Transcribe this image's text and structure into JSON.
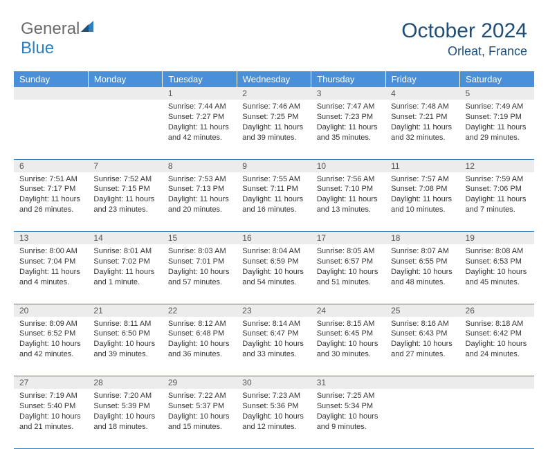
{
  "brand": {
    "part1": "General",
    "part2": "Blue",
    "accent_color": "#2f7fbf",
    "gray_color": "#6b6b6b"
  },
  "title": {
    "month": "October 2024",
    "location": "Orleat, France",
    "color": "#1f4e79",
    "month_fontsize": 30,
    "location_fontsize": 18
  },
  "theme": {
    "header_bg": "#4a90d9",
    "header_text": "#ffffff",
    "daynum_bg": "#ececec",
    "daynum_text": "#555555",
    "cell_text": "#333333",
    "row_border": "#2f7fbf",
    "body_fontsize": 11,
    "daynum_fontsize": 12,
    "header_fontsize": 13
  },
  "columns": [
    "Sunday",
    "Monday",
    "Tuesday",
    "Wednesday",
    "Thursday",
    "Friday",
    "Saturday"
  ],
  "weeks": [
    {
      "nums": [
        "",
        "",
        "1",
        "2",
        "3",
        "4",
        "5"
      ],
      "cells": [
        null,
        null,
        {
          "sunrise": "Sunrise: 7:44 AM",
          "sunset": "Sunset: 7:27 PM",
          "daylight": "Daylight: 11 hours and 42 minutes."
        },
        {
          "sunrise": "Sunrise: 7:46 AM",
          "sunset": "Sunset: 7:25 PM",
          "daylight": "Daylight: 11 hours and 39 minutes."
        },
        {
          "sunrise": "Sunrise: 7:47 AM",
          "sunset": "Sunset: 7:23 PM",
          "daylight": "Daylight: 11 hours and 35 minutes."
        },
        {
          "sunrise": "Sunrise: 7:48 AM",
          "sunset": "Sunset: 7:21 PM",
          "daylight": "Daylight: 11 hours and 32 minutes."
        },
        {
          "sunrise": "Sunrise: 7:49 AM",
          "sunset": "Sunset: 7:19 PM",
          "daylight": "Daylight: 11 hours and 29 minutes."
        }
      ]
    },
    {
      "nums": [
        "6",
        "7",
        "8",
        "9",
        "10",
        "11",
        "12"
      ],
      "cells": [
        {
          "sunrise": "Sunrise: 7:51 AM",
          "sunset": "Sunset: 7:17 PM",
          "daylight": "Daylight: 11 hours and 26 minutes."
        },
        {
          "sunrise": "Sunrise: 7:52 AM",
          "sunset": "Sunset: 7:15 PM",
          "daylight": "Daylight: 11 hours and 23 minutes."
        },
        {
          "sunrise": "Sunrise: 7:53 AM",
          "sunset": "Sunset: 7:13 PM",
          "daylight": "Daylight: 11 hours and 20 minutes."
        },
        {
          "sunrise": "Sunrise: 7:55 AM",
          "sunset": "Sunset: 7:11 PM",
          "daylight": "Daylight: 11 hours and 16 minutes."
        },
        {
          "sunrise": "Sunrise: 7:56 AM",
          "sunset": "Sunset: 7:10 PM",
          "daylight": "Daylight: 11 hours and 13 minutes."
        },
        {
          "sunrise": "Sunrise: 7:57 AM",
          "sunset": "Sunset: 7:08 PM",
          "daylight": "Daylight: 11 hours and 10 minutes."
        },
        {
          "sunrise": "Sunrise: 7:59 AM",
          "sunset": "Sunset: 7:06 PM",
          "daylight": "Daylight: 11 hours and 7 minutes."
        }
      ]
    },
    {
      "nums": [
        "13",
        "14",
        "15",
        "16",
        "17",
        "18",
        "19"
      ],
      "cells": [
        {
          "sunrise": "Sunrise: 8:00 AM",
          "sunset": "Sunset: 7:04 PM",
          "daylight": "Daylight: 11 hours and 4 minutes."
        },
        {
          "sunrise": "Sunrise: 8:01 AM",
          "sunset": "Sunset: 7:02 PM",
          "daylight": "Daylight: 11 hours and 1 minute."
        },
        {
          "sunrise": "Sunrise: 8:03 AM",
          "sunset": "Sunset: 7:01 PM",
          "daylight": "Daylight: 10 hours and 57 minutes."
        },
        {
          "sunrise": "Sunrise: 8:04 AM",
          "sunset": "Sunset: 6:59 PM",
          "daylight": "Daylight: 10 hours and 54 minutes."
        },
        {
          "sunrise": "Sunrise: 8:05 AM",
          "sunset": "Sunset: 6:57 PM",
          "daylight": "Daylight: 10 hours and 51 minutes."
        },
        {
          "sunrise": "Sunrise: 8:07 AM",
          "sunset": "Sunset: 6:55 PM",
          "daylight": "Daylight: 10 hours and 48 minutes."
        },
        {
          "sunrise": "Sunrise: 8:08 AM",
          "sunset": "Sunset: 6:53 PM",
          "daylight": "Daylight: 10 hours and 45 minutes."
        }
      ]
    },
    {
      "nums": [
        "20",
        "21",
        "22",
        "23",
        "24",
        "25",
        "26"
      ],
      "cells": [
        {
          "sunrise": "Sunrise: 8:09 AM",
          "sunset": "Sunset: 6:52 PM",
          "daylight": "Daylight: 10 hours and 42 minutes."
        },
        {
          "sunrise": "Sunrise: 8:11 AM",
          "sunset": "Sunset: 6:50 PM",
          "daylight": "Daylight: 10 hours and 39 minutes."
        },
        {
          "sunrise": "Sunrise: 8:12 AM",
          "sunset": "Sunset: 6:48 PM",
          "daylight": "Daylight: 10 hours and 36 minutes."
        },
        {
          "sunrise": "Sunrise: 8:14 AM",
          "sunset": "Sunset: 6:47 PM",
          "daylight": "Daylight: 10 hours and 33 minutes."
        },
        {
          "sunrise": "Sunrise: 8:15 AM",
          "sunset": "Sunset: 6:45 PM",
          "daylight": "Daylight: 10 hours and 30 minutes."
        },
        {
          "sunrise": "Sunrise: 8:16 AM",
          "sunset": "Sunset: 6:43 PM",
          "daylight": "Daylight: 10 hours and 27 minutes."
        },
        {
          "sunrise": "Sunrise: 8:18 AM",
          "sunset": "Sunset: 6:42 PM",
          "daylight": "Daylight: 10 hours and 24 minutes."
        }
      ]
    },
    {
      "nums": [
        "27",
        "28",
        "29",
        "30",
        "31",
        "",
        ""
      ],
      "cells": [
        {
          "sunrise": "Sunrise: 7:19 AM",
          "sunset": "Sunset: 5:40 PM",
          "daylight": "Daylight: 10 hours and 21 minutes."
        },
        {
          "sunrise": "Sunrise: 7:20 AM",
          "sunset": "Sunset: 5:39 PM",
          "daylight": "Daylight: 10 hours and 18 minutes."
        },
        {
          "sunrise": "Sunrise: 7:22 AM",
          "sunset": "Sunset: 5:37 PM",
          "daylight": "Daylight: 10 hours and 15 minutes."
        },
        {
          "sunrise": "Sunrise: 7:23 AM",
          "sunset": "Sunset: 5:36 PM",
          "daylight": "Daylight: 10 hours and 12 minutes."
        },
        {
          "sunrise": "Sunrise: 7:25 AM",
          "sunset": "Sunset: 5:34 PM",
          "daylight": "Daylight: 10 hours and 9 minutes."
        },
        null,
        null
      ]
    }
  ]
}
